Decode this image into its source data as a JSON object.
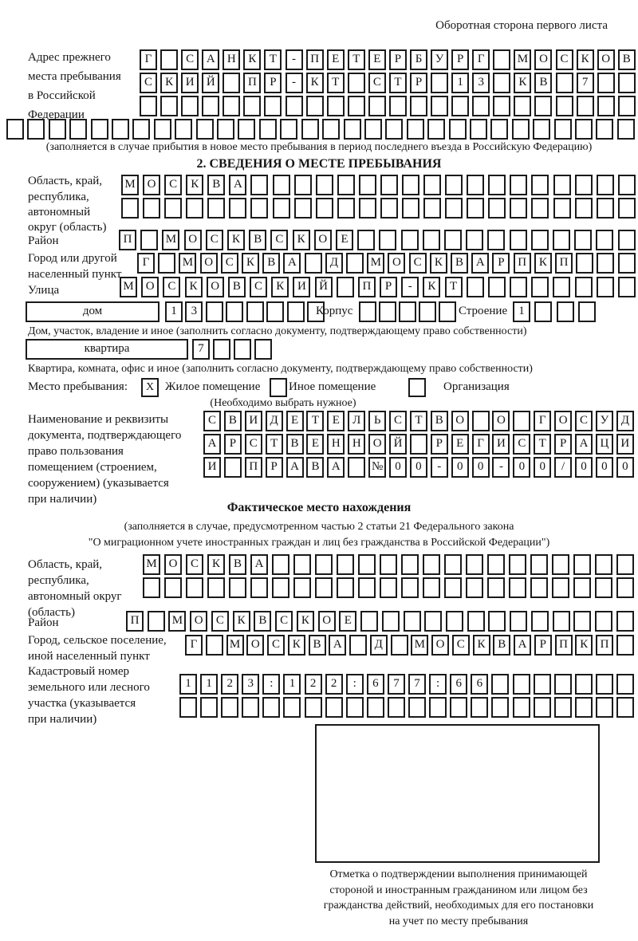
{
  "page": {
    "corner_note": "Оборотная сторона первого листа"
  },
  "prev_address": {
    "label_lines": [
      "Адрес прежнего",
      "места пребывания",
      "в Российской",
      "Федерации"
    ],
    "rows": [
      {
        "cells": "Г САНКТ-ПЕТЕРБУРГ МОСКОВ",
        "count": 24
      },
      {
        "cells": "СКИЙ ПР-КТ СТР 13 КВ 7",
        "count": 24
      },
      {
        "cells": "",
        "count": 24
      },
      {
        "cells": "",
        "count": 30
      }
    ],
    "note": "(заполняется в случае прибытия в новое место пребывания в период последнего въезда в Российскую Федерацию)"
  },
  "section2": {
    "title": "2. СВЕДЕНИЯ О МЕСТЕ ПРЕБЫВАНИЯ",
    "region": {
      "label_lines": [
        "Область, край,",
        "республика,",
        "автономный",
        "округ (область)"
      ],
      "rows": [
        {
          "cells": "МОСКВА",
          "count": 24
        },
        {
          "cells": "",
          "count": 24
        }
      ]
    },
    "district": {
      "label": "Район",
      "row": {
        "cells": "П МОСКВСКОЕ",
        "count": 24
      }
    },
    "city": {
      "label_lines": [
        "Город или другой",
        "населенный пункт"
      ],
      "row": {
        "cells": "Г МОСКВА Д МОСКВАРПКП",
        "count": 24
      }
    },
    "street": {
      "label": "Улица",
      "row": {
        "cells": "МОСКОВСКИЙ ПР-КТ",
        "count": 24
      }
    },
    "house": {
      "field_label": "дом",
      "number_row": {
        "cells": "13",
        "count": 8
      },
      "korpus_label": "Корпус",
      "korpus_row": {
        "cells": "",
        "count": 5
      },
      "stroenie_label": "Строение",
      "stroenie_row": {
        "cells": "1",
        "count": 4
      },
      "note": "Дом, участок, владение и иное (заполнить согласно документу, подтверждающему право собственности)"
    },
    "apartment": {
      "field_label": "квартира",
      "number_row": {
        "cells": "7",
        "count": 4
      },
      "note": "Квартира, комната, офис и иное (заполнить согласно документу, подтверждающему право собственности)"
    },
    "stay_type": {
      "label": "Место пребывания:",
      "options": [
        {
          "mark": "X",
          "label": "Жилое помещение"
        },
        {
          "mark": "",
          "label": "Иное помещение"
        },
        {
          "mark": "",
          "label": "Организация"
        }
      ],
      "note": "(Необходимо выбрать нужное)"
    },
    "document": {
      "label_lines": [
        "Наименование и реквизиты",
        "документа, подтверждающего",
        "право пользования",
        "помещением (строением,",
        "сооружением) (указывается",
        "при наличии)"
      ],
      "rows": [
        {
          "cells": "СВИДЕТЕЛЬСТВО О ГОСУД",
          "count": 21
        },
        {
          "cells": "АРСТВЕННОЙ РЕГИСТРАЦИ",
          "count": 21
        },
        {
          "cells": "И ПРАВА №00-00-00/000",
          "count": 21
        }
      ]
    }
  },
  "actual_location": {
    "title": "Фактическое место нахождения",
    "note_lines": [
      "(заполняется в случае, предусмотренном частью 2 статьи 21 Федерального закона",
      "\"О миграционном учете иностранных граждан и лиц без гражданства в Российской Федерации\")"
    ],
    "region": {
      "label_lines": [
        "Область, край,",
        "республика,",
        "автономный округ",
        "(область)"
      ],
      "rows": [
        {
          "cells": "МОСКВА",
          "count": 23
        },
        {
          "cells": "",
          "count": 23
        }
      ]
    },
    "district": {
      "label": "Район",
      "row": {
        "cells": "П МОСКВСКОЕ",
        "count": 24
      }
    },
    "city": {
      "label_lines": [
        "Город, сельское поселение,",
        "иной населенный пункт"
      ],
      "row": {
        "cells": "Г МОСКВА Д МОСКВАРПКП",
        "count": 22
      }
    },
    "cadastre": {
      "label_lines": [
        "Кадастровый номер",
        "земельного или лесного",
        "участка (указывается",
        "при наличии)"
      ],
      "rows": [
        {
          "cells": "1123:122:677:66",
          "count": 22
        },
        {
          "cells": "",
          "count": 22
        }
      ]
    },
    "stamp_caption_lines": [
      "Отметка о подтверждении выполнения принимающей",
      "стороной и иностранным гражданином или лицом без",
      "гражданства действий, необходимых для его постановки",
      "на учет по месту пребывания"
    ]
  }
}
